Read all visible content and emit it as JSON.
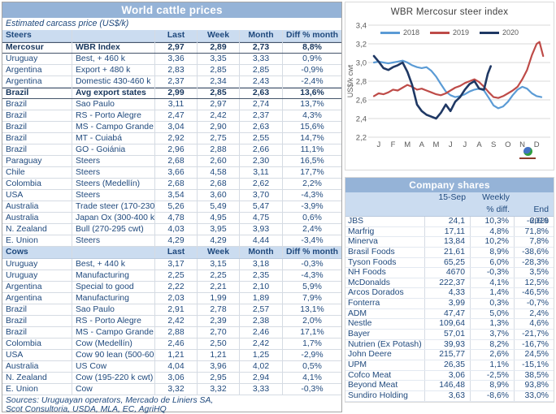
{
  "cattle": {
    "title": "World cattle prices",
    "subtitle": "Estimated carcass price (US$/k)",
    "column_headers": [
      "Last",
      "Week",
      "Month",
      "Diff % month"
    ],
    "sections": [
      {
        "name": "Steers",
        "bold_rows": [
          0,
          4
        ],
        "rows": [
          [
            "Mercosur",
            "WBR Index",
            "2,97",
            "2,89",
            "2,73",
            "8,8%"
          ],
          [
            "Uruguay",
            "Best, + 460 k",
            "3,36",
            "3,35",
            "3,33",
            "0,9%"
          ],
          [
            "Argentina",
            "Export + 480 k",
            "2,83",
            "2,85",
            "2,85",
            "-0,9%"
          ],
          [
            "Argentina",
            "Domestic 430-460 k",
            "2,37",
            "2,34",
            "2,43",
            "-2,4%"
          ],
          [
            "Brazil",
            "Avg export states",
            "2,99",
            "2,85",
            "2,63",
            "13,6%"
          ],
          [
            "Brazil",
            "Sao Paulo",
            "3,11",
            "2,97",
            "2,74",
            "13,7%"
          ],
          [
            "Brazil",
            "RS - Porto Alegre",
            "2,47",
            "2,42",
            "2,37",
            "4,3%"
          ],
          [
            "Brazil",
            "MS - Campo Grande",
            "3,04",
            "2,90",
            "2,63",
            "15,6%"
          ],
          [
            "Brazil",
            "MT - Cuiabá",
            "2,92",
            "2,75",
            "2,55",
            "14,7%"
          ],
          [
            "Brazil",
            "GO - Goiánia",
            "2,96",
            "2,88",
            "2,66",
            "11,1%"
          ],
          [
            "Paraguay",
            "Steers",
            "2,68",
            "2,60",
            "2,30",
            "16,5%"
          ],
          [
            "Chile",
            "Steers",
            "3,66",
            "4,58",
            "3,11",
            "17,7%"
          ],
          [
            "Colombia",
            "Steers (Medellín)",
            "2,68",
            "2,68",
            "2,62",
            "2,2%"
          ],
          [
            "USA",
            "Steers",
            "3,54",
            "3,60",
            "3,70",
            "-4,3%"
          ],
          [
            "Australia",
            "Trade steer (170-230 k)",
            "5,26",
            "5,49",
            "5,47",
            "-3,9%"
          ],
          [
            "Australia",
            "Japan Ox (300-400 k)",
            "4,78",
            "4,95",
            "4,75",
            "0,6%"
          ],
          [
            "N. Zealand",
            "Bull (270-295 cwt)",
            "4,03",
            "3,95",
            "3,93",
            "2,4%"
          ],
          [
            "E. Union",
            "Steers",
            "4,29",
            "4,29",
            "4,44",
            "-3,4%"
          ]
        ]
      },
      {
        "name": "Cows",
        "bold_rows": [],
        "rows": [
          [
            "Uruguay",
            "Best, + 440 k",
            "3,17",
            "3,15",
            "3,18",
            "-0,3%"
          ],
          [
            "Uruguay",
            "Manufacturing",
            "2,25",
            "2,25",
            "2,35",
            "-4,3%"
          ],
          [
            "Argentina",
            "Special to good",
            "2,22",
            "2,21",
            "2,10",
            "5,9%"
          ],
          [
            "Argentina",
            "Manufacturing",
            "2,03",
            "1,99",
            "1,89",
            "7,9%"
          ],
          [
            "Brazil",
            "Sao Paulo",
            "2,91",
            "2,78",
            "2,57",
            "13,1%"
          ],
          [
            "Brazil",
            "RS - Porto Alegre",
            "2,42",
            "2,39",
            "2,38",
            "2,0%"
          ],
          [
            "Brazil",
            "MS - Campo Grande",
            "2,88",
            "2,70",
            "2,46",
            "17,1%"
          ],
          [
            "Colombia",
            "Cow (Medellín)",
            "2,46",
            "2,50",
            "2,42",
            "1,7%"
          ],
          [
            "USA",
            "Cow 90 lean (500-600 lb)",
            "1,21",
            "1,21",
            "1,25",
            "-2,9%"
          ],
          [
            "Australia",
            "US Cow",
            "4,04",
            "3,96",
            "4,02",
            "0,5%"
          ],
          [
            "N. Zealand",
            "Cow (195-220 k cwt)",
            "3,06",
            "2,95",
            "2,94",
            "4,1%"
          ],
          [
            "E. Union",
            "Cow",
            "3,32",
            "3,32",
            "3,33",
            "-0,3%"
          ]
        ]
      }
    ],
    "sources_line1": "Sources: Uruguayan operators, Mercado de Liniers SA,",
    "sources_line2": "Scot Consultoria, USDA, MLA, EC, AgriHQ"
  },
  "chart_data": {
    "type": "line",
    "title": "WBR Mercosur steer index",
    "ylabel": "US$/k cwt",
    "ylim": [
      2.2,
      3.4
    ],
    "ytick_values": [
      2.2,
      2.4,
      2.6,
      2.8,
      3.0,
      3.2,
      3.4
    ],
    "ytick_labels": [
      "2,2",
      "2,4",
      "2,6",
      "2,8",
      "3,0",
      "3,2",
      "3,4"
    ],
    "x_labels": [
      "J",
      "F",
      "M",
      "A",
      "M",
      "J",
      "J",
      "A",
      "S",
      "O",
      "N",
      "D"
    ],
    "grid": true,
    "legend_position": "top",
    "series": [
      {
        "name": "2018",
        "color": "#5B9BD5",
        "width": 2.2,
        "x": [
          0.17,
          0.5,
          0.83,
          1.17,
          1.5,
          1.83,
          2.17,
          2.5,
          2.83,
          3.17,
          3.5,
          3.83,
          4.17,
          4.5,
          4.83,
          5.17,
          5.5,
          5.83,
          6.17,
          6.5,
          6.83,
          7.17,
          7.5,
          7.83,
          8.17,
          8.5,
          8.83,
          9.17,
          9.5,
          9.83,
          10.17,
          10.5,
          10.83,
          11.17,
          11.5,
          11.83
        ],
        "values": [
          3.0,
          3.01,
          3.0,
          2.99,
          3.0,
          3.01,
          3.02,
          3.0,
          2.97,
          2.95,
          2.94,
          2.95,
          2.91,
          2.85,
          2.77,
          2.69,
          2.65,
          2.63,
          2.64,
          2.66,
          2.69,
          2.71,
          2.72,
          2.7,
          2.62,
          2.54,
          2.51,
          2.53,
          2.58,
          2.65,
          2.71,
          2.74,
          2.72,
          2.67,
          2.64,
          2.63
        ]
      },
      {
        "name": "2019",
        "color": "#BE4B48",
        "width": 2.2,
        "x": [
          0.17,
          0.5,
          0.83,
          1.17,
          1.5,
          1.83,
          2.17,
          2.5,
          2.83,
          3.17,
          3.5,
          3.83,
          4.17,
          4.5,
          4.83,
          5.17,
          5.5,
          5.83,
          6.17,
          6.5,
          6.83,
          7.17,
          7.5,
          7.83,
          8.17,
          8.5,
          8.83,
          9.17,
          9.5,
          9.83,
          10.17,
          10.5,
          10.83,
          11.17,
          11.5,
          11.7,
          11.95
        ],
        "values": [
          2.64,
          2.67,
          2.66,
          2.68,
          2.71,
          2.7,
          2.73,
          2.76,
          2.74,
          2.71,
          2.72,
          2.7,
          2.68,
          2.66,
          2.65,
          2.67,
          2.7,
          2.73,
          2.75,
          2.78,
          2.8,
          2.82,
          2.79,
          2.74,
          2.68,
          2.63,
          2.62,
          2.64,
          2.67,
          2.7,
          2.74,
          2.82,
          2.92,
          3.08,
          3.2,
          3.22,
          3.07
        ]
      },
      {
        "name": "2020",
        "color": "#1F3864",
        "width": 2.6,
        "x": [
          0.17,
          0.5,
          0.83,
          1.17,
          1.5,
          1.83,
          2.17,
          2.5,
          2.83,
          3.17,
          3.5,
          3.83,
          4.17,
          4.5,
          4.83,
          5.17,
          5.5,
          5.83,
          6.17,
          6.5,
          6.83,
          7.17,
          7.5,
          7.83,
          8.1,
          8.3
        ],
        "values": [
          3.07,
          3.01,
          2.94,
          2.92,
          2.95,
          2.97,
          3.0,
          2.9,
          2.76,
          2.55,
          2.48,
          2.44,
          2.42,
          2.4,
          2.46,
          2.55,
          2.48,
          2.58,
          2.63,
          2.71,
          2.77,
          2.8,
          2.72,
          2.71,
          2.88,
          2.96
        ]
      }
    ]
  },
  "company": {
    "title": "Company shares",
    "header": {
      "col1": "15-Sep",
      "col2_line1": "Weekly",
      "col2_line2": "% diff.",
      "col3": "End 2019"
    },
    "rows": [
      [
        "JBS",
        "24,1",
        "10,3%",
        "-6,6%"
      ],
      [
        "Marfrig",
        "17,11",
        "4,8%",
        "71,8%"
      ],
      [
        "Minerva",
        "13,84",
        "10,2%",
        "7,8%"
      ],
      [
        "Brasil Foods",
        "21,61",
        "8,9%",
        "-38,6%"
      ],
      [
        "Tyson Foods",
        "65,25",
        "6,0%",
        "-28,3%"
      ],
      [
        "NH Foods",
        "4670",
        "-0,3%",
        "3,5%"
      ],
      [
        "McDonalds",
        "222,37",
        "4,1%",
        "12,5%"
      ],
      [
        "Arcos Dorados",
        "4,33",
        "1,4%",
        "-46,5%"
      ],
      [
        "Fonterra",
        "3,99",
        "0,3%",
        "-0,7%"
      ],
      [
        "ADM",
        "47,47",
        "5,0%",
        "2,4%"
      ],
      [
        "Nestle",
        "109,64",
        "1,3%",
        "4,6%"
      ],
      [
        "Bayer",
        "57,01",
        "3,7%",
        "-21,7%"
      ],
      [
        "Nutrien (Ex Potash)",
        "39,93",
        "8,2%",
        "-16,7%"
      ],
      [
        "John Deere",
        "215,77",
        "2,6%",
        "24,5%"
      ],
      [
        "UPM",
        "26,35",
        "1,1%",
        "-15,1%"
      ],
      [
        "Cofco Meat",
        "3,06",
        "-2,5%",
        "38,5%"
      ],
      [
        "Beyond Meat",
        "146,48",
        "8,9%",
        "93,8%"
      ],
      [
        "Sundiro Holding",
        "3,63",
        "-8,6%",
        "33,0%"
      ]
    ]
  },
  "colors": {
    "title_bar_bg": "#95B3D7",
    "title_bar_text": "#FFFFFF",
    "header_band_bg": "#CBDCF0",
    "body_text": "#1F497D",
    "bold_text": "#17365D",
    "gridline": "#D9D9D9",
    "axis_text": "#595959",
    "chart_title_text": "#404040",
    "series_2018": "#5B9BD5",
    "series_2019": "#BE4B48",
    "series_2020": "#1F3864"
  },
  "icons": {
    "logo": "tardaguila-logo"
  }
}
